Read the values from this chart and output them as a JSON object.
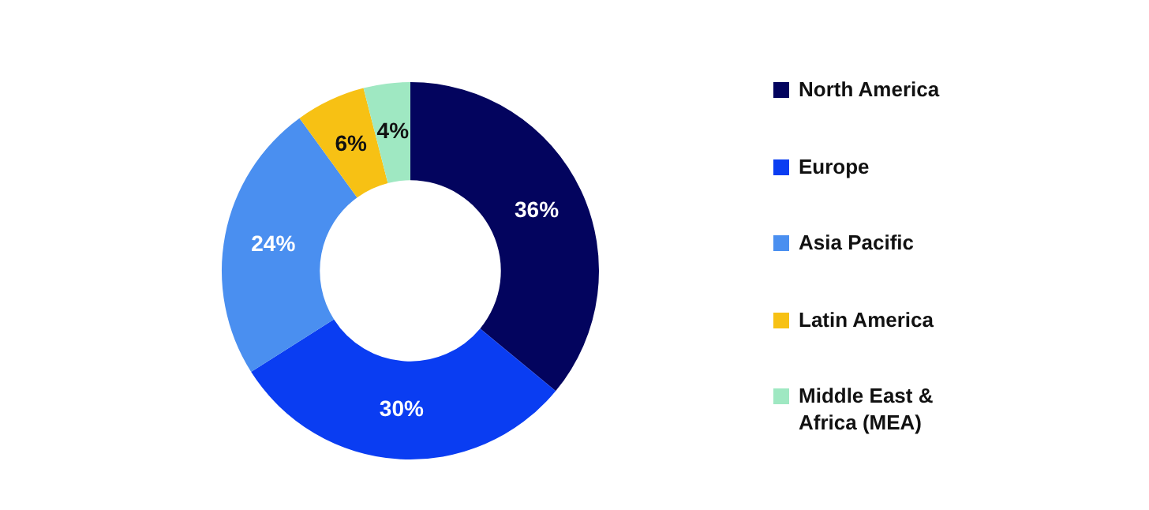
{
  "chart_data": {
    "type": "donut",
    "categories": [
      "North America",
      "Europe",
      "Asia Pacific",
      "Latin America",
      "Middle East & Africa (MEA)"
    ],
    "values": [
      36,
      30,
      24,
      6,
      4
    ],
    "colors": [
      "#03045e",
      "#0a3df2",
      "#4a8ff0",
      "#f7c114",
      "#9fe8c2"
    ],
    "value_labels": [
      "36%",
      "30%",
      "24%",
      "6%",
      "4%"
    ],
    "legend": "right"
  }
}
